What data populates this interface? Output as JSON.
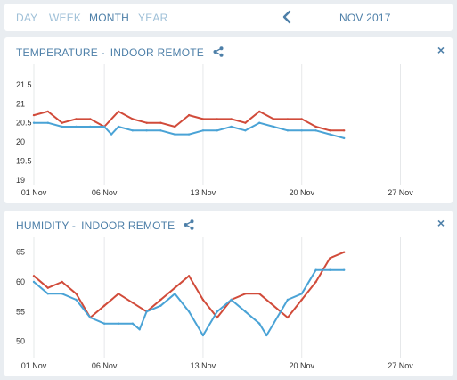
{
  "range_tabs": [
    {
      "label": "DAY",
      "active": false
    },
    {
      "label": "WEEK",
      "active": false
    },
    {
      "label": "MONTH",
      "active": true
    },
    {
      "label": "YEAR",
      "active": false
    }
  ],
  "period": "NOV 2017",
  "icons": {
    "prev": "chevron-left-icon",
    "share": "share-icon",
    "close": "close-icon"
  },
  "colors": {
    "accent": "#4d7fa8",
    "series_red": "#d14b3a",
    "series_blue": "#4aa3d6"
  },
  "temperature": {
    "title_main": "TEMPERATURE -",
    "title_sub": "INDOOR REMOTE",
    "close_label": "×"
  },
  "humidity": {
    "title_main": "HUMIDITY -",
    "title_sub": "INDOOR REMOTE",
    "close_label": "×"
  },
  "chart_data": [
    {
      "type": "line",
      "title": "TEMPERATURE - INDOOR REMOTE",
      "x_tick_labels": [
        "01 Nov",
        "06 Nov",
        "13 Nov",
        "20 Nov",
        "27 Nov"
      ],
      "x_tick_days": [
        1,
        6,
        13,
        20,
        27
      ],
      "xlim": [
        1,
        30
      ],
      "y_ticks": [
        19,
        19.5,
        20,
        20.5,
        21,
        21.5
      ],
      "ylim": [
        19,
        21.8
      ],
      "grid": "vertical",
      "series": [
        {
          "color": "#d14b3a",
          "x": [
            1,
            2,
            3,
            4,
            5,
            6,
            7,
            8,
            9,
            10,
            11,
            12,
            13,
            14,
            15,
            16,
            17,
            18,
            19,
            20,
            21,
            22,
            23
          ],
          "values": [
            20.7,
            20.8,
            20.5,
            20.6,
            20.6,
            20.4,
            20.8,
            20.6,
            20.5,
            20.5,
            20.4,
            20.7,
            20.6,
            20.6,
            20.6,
            20.5,
            20.8,
            20.6,
            20.6,
            20.6,
            20.4,
            20.3,
            20.3
          ]
        },
        {
          "color": "#4aa3d6",
          "x": [
            1,
            2,
            3,
            4,
            5,
            6,
            6.5,
            7,
            8,
            9,
            10,
            11,
            12,
            13,
            14,
            15,
            16,
            17,
            18,
            19,
            20,
            21,
            22,
            23
          ],
          "values": [
            20.5,
            20.5,
            20.4,
            20.4,
            20.4,
            20.4,
            20.2,
            20.4,
            20.3,
            20.3,
            20.3,
            20.2,
            20.2,
            20.3,
            20.3,
            20.4,
            20.3,
            20.5,
            20.4,
            20.3,
            20.3,
            20.3,
            20.2,
            20.1
          ]
        }
      ]
    },
    {
      "type": "line",
      "title": "HUMIDITY - INDOOR REMOTE",
      "x_tick_labels": [
        "01 Nov",
        "06 Nov",
        "13 Nov",
        "20 Nov",
        "27 Nov"
      ],
      "x_tick_days": [
        1,
        6,
        13,
        20,
        27
      ],
      "xlim": [
        1,
        30
      ],
      "y_ticks": [
        50,
        55,
        60,
        65
      ],
      "ylim": [
        48,
        66
      ],
      "grid": "vertical",
      "series": [
        {
          "color": "#d14b3a",
          "x": [
            1,
            2,
            3,
            4,
            5,
            6,
            7,
            8,
            9,
            10,
            11,
            12,
            13,
            14,
            15,
            16,
            17,
            18,
            19,
            20,
            21,
            22,
            23
          ],
          "values": [
            61,
            59,
            60,
            58,
            54,
            56,
            58,
            56.5,
            55,
            57,
            59,
            61,
            57,
            54,
            57,
            58,
            58,
            56,
            54,
            57,
            60,
            64,
            65
          ]
        },
        {
          "color": "#4aa3d6",
          "x": [
            1,
            2,
            3,
            4,
            5,
            6,
            7,
            8,
            8.5,
            9,
            10,
            11,
            12,
            13,
            14,
            15,
            16,
            17,
            17.5,
            18,
            19,
            20,
            21,
            22,
            23
          ],
          "values": [
            60,
            58,
            58,
            57,
            54,
            53,
            53,
            53,
            52,
            55,
            56,
            58,
            55,
            51,
            55,
            57,
            55,
            53,
            51,
            53,
            57,
            58,
            62,
            62,
            62
          ]
        }
      ]
    }
  ]
}
